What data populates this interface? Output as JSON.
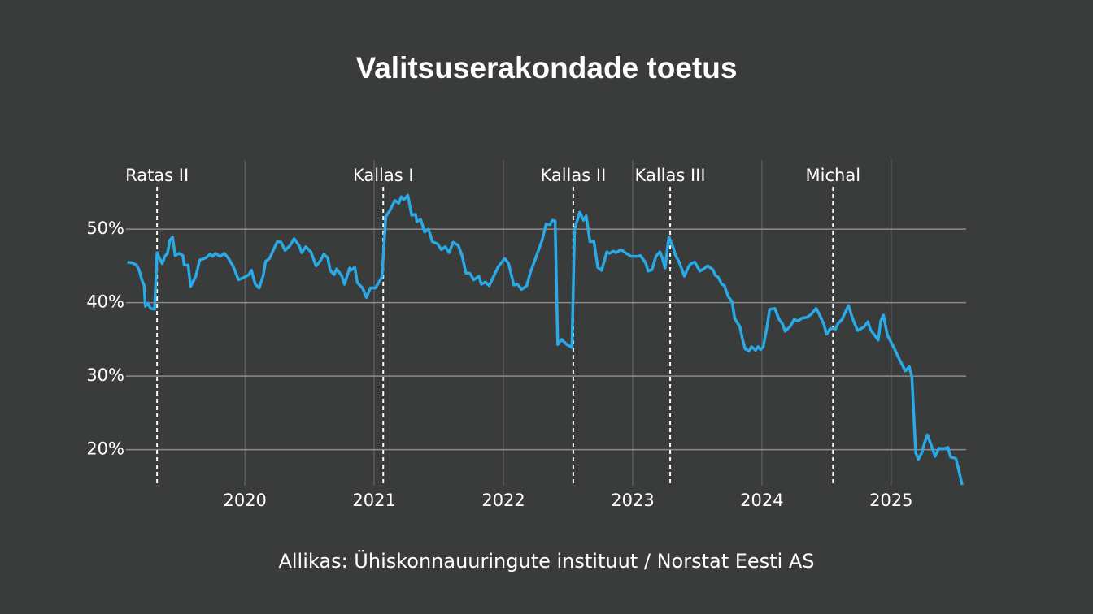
{
  "chart_data": {
    "type": "line",
    "title": "Valitsuserakondade toetus",
    "source": "Allikas: Ühiskonnauuringute instituut / Norstat Eesti AS",
    "color": "#29a9e6",
    "grid": true,
    "xlim": [
      2019.08,
      2025.58
    ],
    "ylim": [
      15.1,
      59.4
    ],
    "xticks": [
      2020,
      2021,
      2022,
      2023,
      2024,
      2025
    ],
    "yticks": [
      {
        "value": 20,
        "label": "20%"
      },
      {
        "value": 30,
        "label": "30%"
      },
      {
        "value": 40,
        "label": "40%"
      },
      {
        "value": 50,
        "label": "50%"
      }
    ],
    "annotations": [
      {
        "label": "Ratas II",
        "x": 2019.32
      },
      {
        "label": "Kallas I",
        "x": 2021.07
      },
      {
        "label": "Kallas II",
        "x": 2022.54
      },
      {
        "label": "Kallas III",
        "x": 2023.29
      },
      {
        "label": "Michal",
        "x": 2024.55
      }
    ],
    "x": [
      2019.09,
      2019.13,
      2019.16,
      2019.18,
      2019.2,
      2019.22,
      2019.23,
      2019.25,
      2019.27,
      2019.3,
      2019.32,
      2019.34,
      2019.36,
      2019.38,
      2019.4,
      2019.42,
      2019.44,
      2019.46,
      2019.49,
      2019.52,
      2019.53,
      2019.56,
      2019.58,
      2019.62,
      2019.65,
      2019.7,
      2019.73,
      2019.75,
      2019.77,
      2019.81,
      2019.84,
      2019.87,
      2019.91,
      2019.95,
      2019.99,
      2020.03,
      2020.05,
      2020.08,
      2020.11,
      2020.14,
      2020.16,
      2020.19,
      2020.25,
      2020.28,
      2020.31,
      2020.35,
      2020.38,
      2020.42,
      2020.44,
      2020.47,
      2020.51,
      2020.55,
      2020.58,
      2020.61,
      2020.64,
      2020.66,
      2020.69,
      2020.71,
      2020.75,
      2020.77,
      2020.81,
      2020.82,
      2020.85,
      2020.87,
      2020.91,
      2020.94,
      2020.97,
      2021.01,
      2021.04,
      2021.06,
      2021.09,
      2021.12,
      2021.16,
      2021.19,
      2021.21,
      2021.23,
      2021.26,
      2021.29,
      2021.32,
      2021.33,
      2021.36,
      2021.39,
      2021.42,
      2021.45,
      2021.49,
      2021.52,
      2021.55,
      2021.58,
      2021.61,
      2021.65,
      2021.68,
      2021.71,
      2021.74,
      2021.77,
      2021.81,
      2021.83,
      2021.86,
      2021.89,
      2021.92,
      2021.96,
      2022.01,
      2022.04,
      2022.08,
      2022.11,
      2022.14,
      2022.18,
      2022.21,
      2022.24,
      2022.26,
      2022.3,
      2022.33,
      2022.36,
      2022.38,
      2022.4,
      2022.42,
      2022.45,
      2022.49,
      2022.53,
      2022.55,
      2022.59,
      2022.62,
      2022.64,
      2022.67,
      2022.7,
      2022.73,
      2022.76,
      2022.8,
      2022.82,
      2022.85,
      2022.87,
      2022.91,
      2022.95,
      2022.99,
      2023.04,
      2023.06,
      2023.1,
      2023.12,
      2023.15,
      2023.18,
      2023.21,
      2023.23,
      2023.25,
      2023.28,
      2023.31,
      2023.33,
      2023.36,
      2023.4,
      2023.43,
      2023.45,
      2023.48,
      2023.52,
      2023.55,
      2023.58,
      2023.62,
      2023.64,
      2023.66,
      2023.69,
      2023.71,
      2023.74,
      2023.77,
      2023.79,
      2023.83,
      2023.85,
      2023.87,
      2023.9,
      2023.92,
      2023.95,
      2023.97,
      2023.99,
      2024.01,
      2024.04,
      2024.06,
      2024.1,
      2024.13,
      2024.16,
      2024.18,
      2024.22,
      2024.25,
      2024.28,
      2024.31,
      2024.35,
      2024.38,
      2024.42,
      2024.45,
      2024.48,
      2024.5,
      2024.53,
      2024.57,
      2024.59,
      2024.62,
      2024.64,
      2024.67,
      2024.7,
      2024.74,
      2024.77,
      2024.79,
      2024.82,
      2024.84,
      2024.87,
      2024.9,
      2024.92,
      2024.94,
      2024.97,
      2025.02,
      2025.06,
      2025.11,
      2025.14,
      2025.16,
      2025.19,
      2025.21,
      2025.24,
      2025.26,
      2025.28,
      2025.31,
      2025.34,
      2025.37,
      2025.4,
      2025.44,
      2025.46,
      2025.5,
      2025.52,
      2025.55
    ],
    "values": [
      45.5,
      45.4,
      45.1,
      44.5,
      43.2,
      42.3,
      39.5,
      39.9,
      39.2,
      39.1,
      46.8,
      46.0,
      45.3,
      46.3,
      46.7,
      48.5,
      48.9,
      46.4,
      46.7,
      46.4,
      45.1,
      45.1,
      42.2,
      43.6,
      45.8,
      46.1,
      46.6,
      46.3,
      46.7,
      46.3,
      46.7,
      46.1,
      44.9,
      43.1,
      43.4,
      43.8,
      44.4,
      42.5,
      42.0,
      43.6,
      45.6,
      46.0,
      48.3,
      48.2,
      47.1,
      47.8,
      48.7,
      47.7,
      46.8,
      47.6,
      46.9,
      45.0,
      45.6,
      46.6,
      46.1,
      44.4,
      43.8,
      44.6,
      43.6,
      42.5,
      44.7,
      44.4,
      44.8,
      42.7,
      42.0,
      40.7,
      42.0,
      42.0,
      42.9,
      43.5,
      51.7,
      52.5,
      53.9,
      53.5,
      54.4,
      54.0,
      54.6,
      51.9,
      52.0,
      51.0,
      51.3,
      49.6,
      50.0,
      48.3,
      48.0,
      47.2,
      47.6,
      46.8,
      48.2,
      47.8,
      46.4,
      44.0,
      44.0,
      43.1,
      43.6,
      42.5,
      42.8,
      42.3,
      43.4,
      44.9,
      46.0,
      45.3,
      42.4,
      42.5,
      41.8,
      42.3,
      44.2,
      45.6,
      46.6,
      48.5,
      50.7,
      50.6,
      51.2,
      51.1,
      34.3,
      35.0,
      34.3,
      33.9,
      49.9,
      52.3,
      51.2,
      51.8,
      48.3,
      48.3,
      44.8,
      44.4,
      46.9,
      46.7,
      47.0,
      46.8,
      47.2,
      46.7,
      46.3,
      46.3,
      46.4,
      45.4,
      44.3,
      44.5,
      46.3,
      46.9,
      46.1,
      44.7,
      48.9,
      47.7,
      46.5,
      45.5,
      43.6,
      44.8,
      45.3,
      45.5,
      44.3,
      44.6,
      45.0,
      44.5,
      43.7,
      43.5,
      42.5,
      42.3,
      40.8,
      40.1,
      37.8,
      36.7,
      35.0,
      33.7,
      33.4,
      34.0,
      33.5,
      34.0,
      33.6,
      34.0,
      36.8,
      39.1,
      39.2,
      37.8,
      37.1,
      36.1,
      36.8,
      37.7,
      37.5,
      37.9,
      38.0,
      38.4,
      39.2,
      38.2,
      37.0,
      35.7,
      36.5,
      36.4,
      37.2,
      37.7,
      38.5,
      39.6,
      37.9,
      36.2,
      36.5,
      36.7,
      37.4,
      36.3,
      35.6,
      34.9,
      37.5,
      38.3,
      35.6,
      33.9,
      32.4,
      30.7,
      31.3,
      29.9,
      19.6,
      18.7,
      19.7,
      21.0,
      22.0,
      20.6,
      19.1,
      20.2,
      20.1,
      20.3,
      19.0,
      18.8,
      17.4,
      15.2
    ]
  }
}
